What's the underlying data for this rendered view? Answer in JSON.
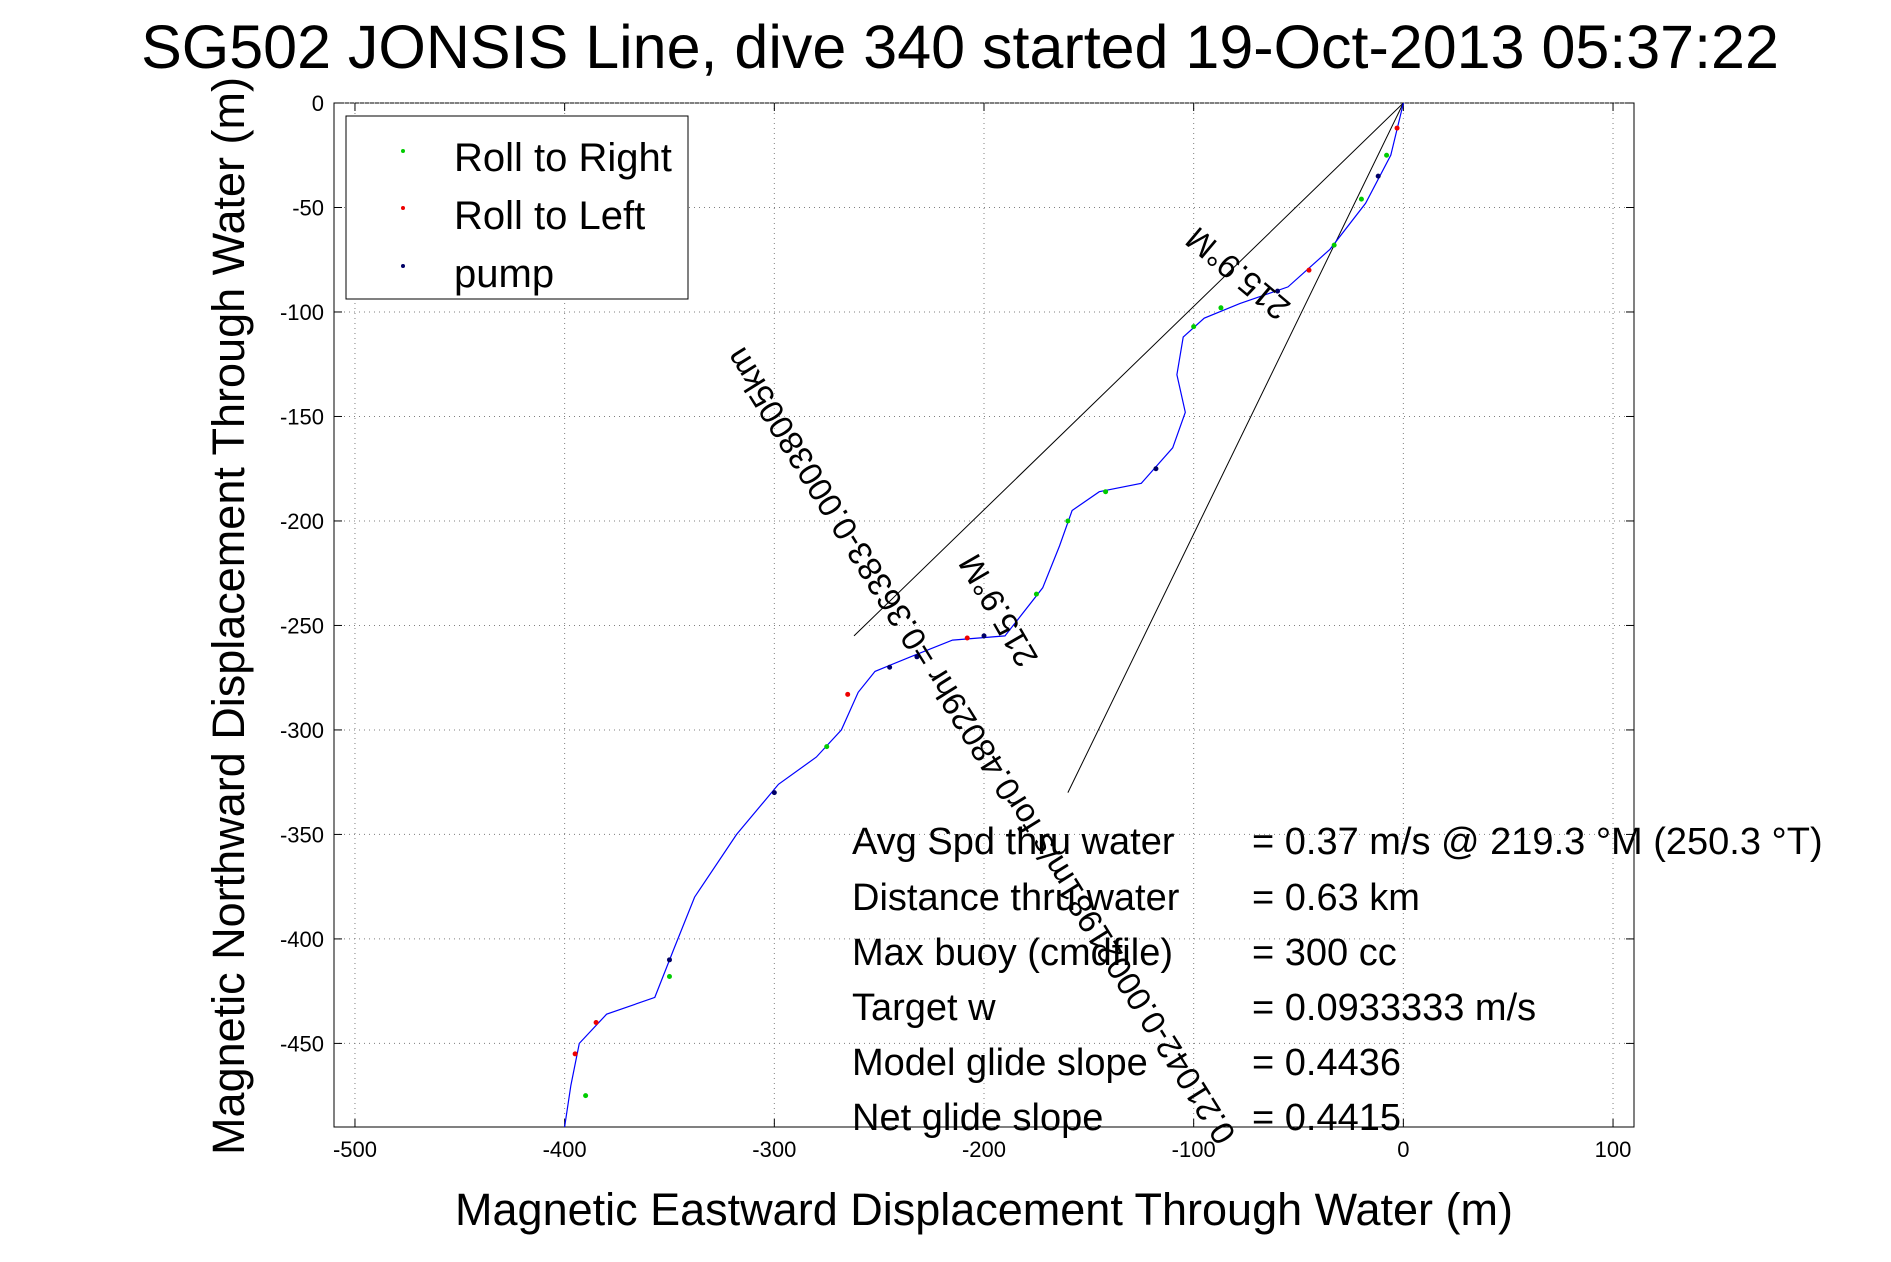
{
  "chart_data": {
    "type": "line",
    "title": "SG502 JONSIS Line, dive 340 started 19-Oct-2013 05:37:22",
    "xlabel": "Magnetic Eastward Displacement Through Water (m)",
    "ylabel": "Magnetic Northward Displacement Through Water (m)",
    "xlim": [
      -510,
      110
    ],
    "ylim": [
      -490,
      0
    ],
    "xticks": [
      -500,
      -400,
      -300,
      -200,
      -100,
      0,
      100
    ],
    "yticks": [
      0,
      -50,
      -100,
      -150,
      -200,
      -250,
      -300,
      -350,
      -400,
      -450
    ],
    "grid": true,
    "legend_position": "top-left",
    "legend": [
      {
        "label": "Roll to Right",
        "color": "#00cc00"
      },
      {
        "label": "Roll to Left",
        "color": "#ee0000"
      },
      {
        "label": "pump",
        "color": "#000066"
      }
    ],
    "track": {
      "name": "dive track",
      "color": "#0000ff",
      "points": [
        [
          0,
          0
        ],
        [
          -6,
          -25
        ],
        [
          -18,
          -48
        ],
        [
          -35,
          -70
        ],
        [
          -55,
          -88
        ],
        [
          -78,
          -96
        ],
        [
          -95,
          -103
        ],
        [
          -105,
          -112
        ],
        [
          -108,
          -130
        ],
        [
          -104,
          -148
        ],
        [
          -110,
          -165
        ],
        [
          -125,
          -182
        ],
        [
          -145,
          -186
        ],
        [
          -158,
          -195
        ],
        [
          -164,
          -212
        ],
        [
          -172,
          -232
        ],
        [
          -190,
          -255
        ],
        [
          -215,
          -257
        ],
        [
          -235,
          -265
        ],
        [
          -252,
          -272
        ],
        [
          -260,
          -282
        ],
        [
          -268,
          -300
        ],
        [
          -280,
          -313
        ],
        [
          -298,
          -326
        ],
        [
          -318,
          -350
        ],
        [
          -338,
          -380
        ],
        [
          -348,
          -405
        ],
        [
          -357,
          -428
        ],
        [
          -380,
          -436
        ],
        [
          -393,
          -450
        ],
        [
          -397,
          -470
        ],
        [
          -400,
          -490
        ]
      ]
    },
    "markers": {
      "roll_right": [
        [
          -8,
          -25
        ],
        [
          -20,
          -46
        ],
        [
          -33,
          -68
        ],
        [
          -87,
          -98
        ],
        [
          -100,
          -107
        ],
        [
          -142,
          -186
        ],
        [
          -160,
          -200
        ],
        [
          -175,
          -235
        ],
        [
          -275,
          -308
        ],
        [
          -350,
          -418
        ],
        [
          -390,
          -475
        ]
      ],
      "roll_left": [
        [
          -3,
          -12
        ],
        [
          -45,
          -80
        ],
        [
          -208,
          -256
        ],
        [
          -265,
          -283
        ],
        [
          -385,
          -440
        ],
        [
          -395,
          -455
        ]
      ],
      "pump": [
        [
          -12,
          -35
        ],
        [
          -60,
          -90
        ],
        [
          -118,
          -175
        ],
        [
          -200,
          -255
        ],
        [
          -232,
          -265
        ],
        [
          -245,
          -270
        ],
        [
          -300,
          -330
        ],
        [
          -350,
          -410
        ]
      ]
    },
    "cone_lines": [
      {
        "from": [
          0,
          0
        ],
        "to": [
          -262,
          -255
        ],
        "color": "#000000"
      },
      {
        "from": [
          0,
          0
        ],
        "to": [
          -160,
          -330
        ],
        "color": "#000000"
      }
    ],
    "diagonal_labels": [
      "215.9°M",
      "0.21042-0.00021981m/s for0.48029hr =0.36383-0.00038005km",
      "215.9°M"
    ],
    "stats": [
      {
        "label": "Avg Spd thru water",
        "value": "=  0.37 m/s @ 219.3 °M (250.3 °T)"
      },
      {
        "label": "Distance thru water",
        "value": "=  0.63 km"
      },
      {
        "label": "Max buoy (cmdfile)",
        "value": "= 300 cc"
      },
      {
        "label": "Target w",
        "value": "= 0.0933333 m/s"
      },
      {
        "label": "Model glide slope",
        "value": "= 0.4436"
      },
      {
        "label": "Net glide slope",
        "value": "= 0.4415"
      }
    ]
  }
}
